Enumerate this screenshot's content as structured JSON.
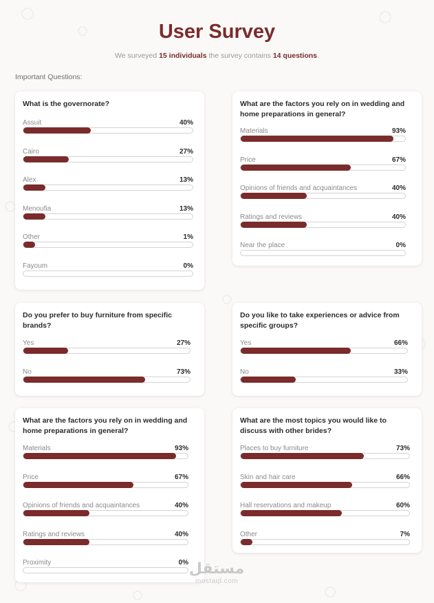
{
  "header": {
    "title": "User Survey",
    "subtitle_prefix": "We surveyed",
    "individuals": "15 individuals",
    "subtitle_middle": "the survey contains",
    "questions": "14 questions",
    "subtitle_suffix": "."
  },
  "section_label": "Important Questions:",
  "colors": {
    "accent": "#7a2b2b",
    "track": "#d3d3d3"
  },
  "cards": [
    {
      "title": "What is the governorate?",
      "items": [
        {
          "label": "Assuit",
          "pct_text": "40%",
          "value": 40
        },
        {
          "label": "Cairo",
          "pct_text": "27%",
          "value": 27
        },
        {
          "label": "Alex",
          "pct_text": "13%",
          "value": 13
        },
        {
          "label": "Menoufia",
          "pct_text": "13%",
          "value": 13
        },
        {
          "label": "Other",
          "pct_text": "1%",
          "value": 1
        },
        {
          "label": "Fayoum",
          "pct_text": "0%",
          "value": 0
        }
      ]
    },
    {
      "title": "What are the factors you rely on in wedding and home preparations in general?",
      "items": [
        {
          "label": "Materials",
          "pct_text": "93%",
          "value": 93
        },
        {
          "label": "Price",
          "pct_text": "67%",
          "value": 67
        },
        {
          "label": "Opinions of friends and acquaintances",
          "pct_text": "40%",
          "value": 40
        },
        {
          "label": "Ratings and reviews",
          "pct_text": "40%",
          "value": 40
        },
        {
          "label": "Near the place",
          "pct_text": "0%",
          "value": 0
        }
      ]
    },
    {
      "title": "Do you prefer to buy furniture from specific brands?",
      "items": [
        {
          "label": "Yes",
          "pct_text": "27%",
          "value": 27
        },
        {
          "label": "No",
          "pct_text": "73%",
          "value": 73
        }
      ]
    },
    {
      "title": "Do you like to take experiences or advice from specific groups?",
      "items": [
        {
          "label": "Yes",
          "pct_text": "66%",
          "value": 66
        },
        {
          "label": "No",
          "pct_text": "33%",
          "value": 33
        }
      ]
    },
    {
      "title": "What are the factors you rely on in wedding and home preparations in general?",
      "items": [
        {
          "label": "Materials",
          "pct_text": "93%",
          "value": 93
        },
        {
          "label": "Price",
          "pct_text": "67%",
          "value": 67
        },
        {
          "label": "Opinions of friends and acquaintances",
          "pct_text": "40%",
          "value": 40
        },
        {
          "label": "Ratings and reviews",
          "pct_text": "40%",
          "value": 40
        },
        {
          "label": "Proximity",
          "pct_text": "0%",
          "value": 0
        }
      ]
    },
    {
      "title": "What are the most topics you would like to discuss with other brides?",
      "items": [
        {
          "label": "Places to buy furniture",
          "pct_text": "73%",
          "value": 73
        },
        {
          "label": "Skin and hair care",
          "pct_text": "66%",
          "value": 66
        },
        {
          "label": "Hall reservations and makeup",
          "pct_text": "60%",
          "value": 60
        },
        {
          "label": "Other",
          "pct_text": "7%",
          "value": 7
        }
      ]
    }
  ],
  "watermark": {
    "logo": "مستقل",
    "text": "mostaql.com"
  }
}
